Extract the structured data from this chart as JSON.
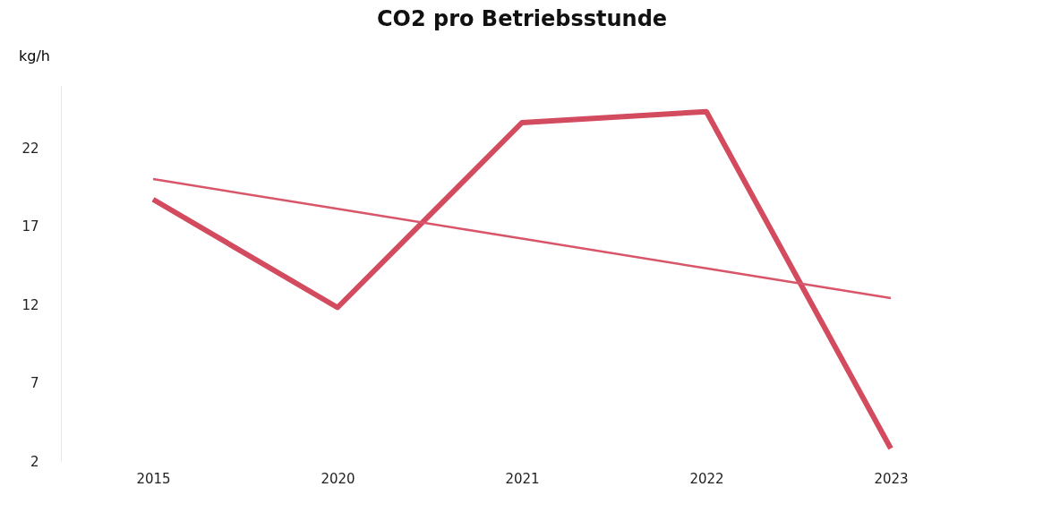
{
  "chart_data": {
    "type": "line",
    "title": "CO2 pro Betriebsstunde",
    "ylabel": "kg/h",
    "categories": [
      "2015",
      "2020",
      "2021",
      "2022",
      "2023"
    ],
    "series": [
      {
        "color": "#d24b5f",
        "values": [
          18.7,
          11.8,
          23.6,
          24.3,
          2.8
        ]
      },
      {
        "color": "#d9566a",
        "values": [
          20,
          18.1,
          16.2,
          14.3,
          12.4
        ]
      }
    ],
    "ylim": [
      2,
      26
    ],
    "yticks": [
      2,
      7,
      12,
      17,
      22
    ],
    "grid": false,
    "marker": "none",
    "line_style": "solid"
  }
}
